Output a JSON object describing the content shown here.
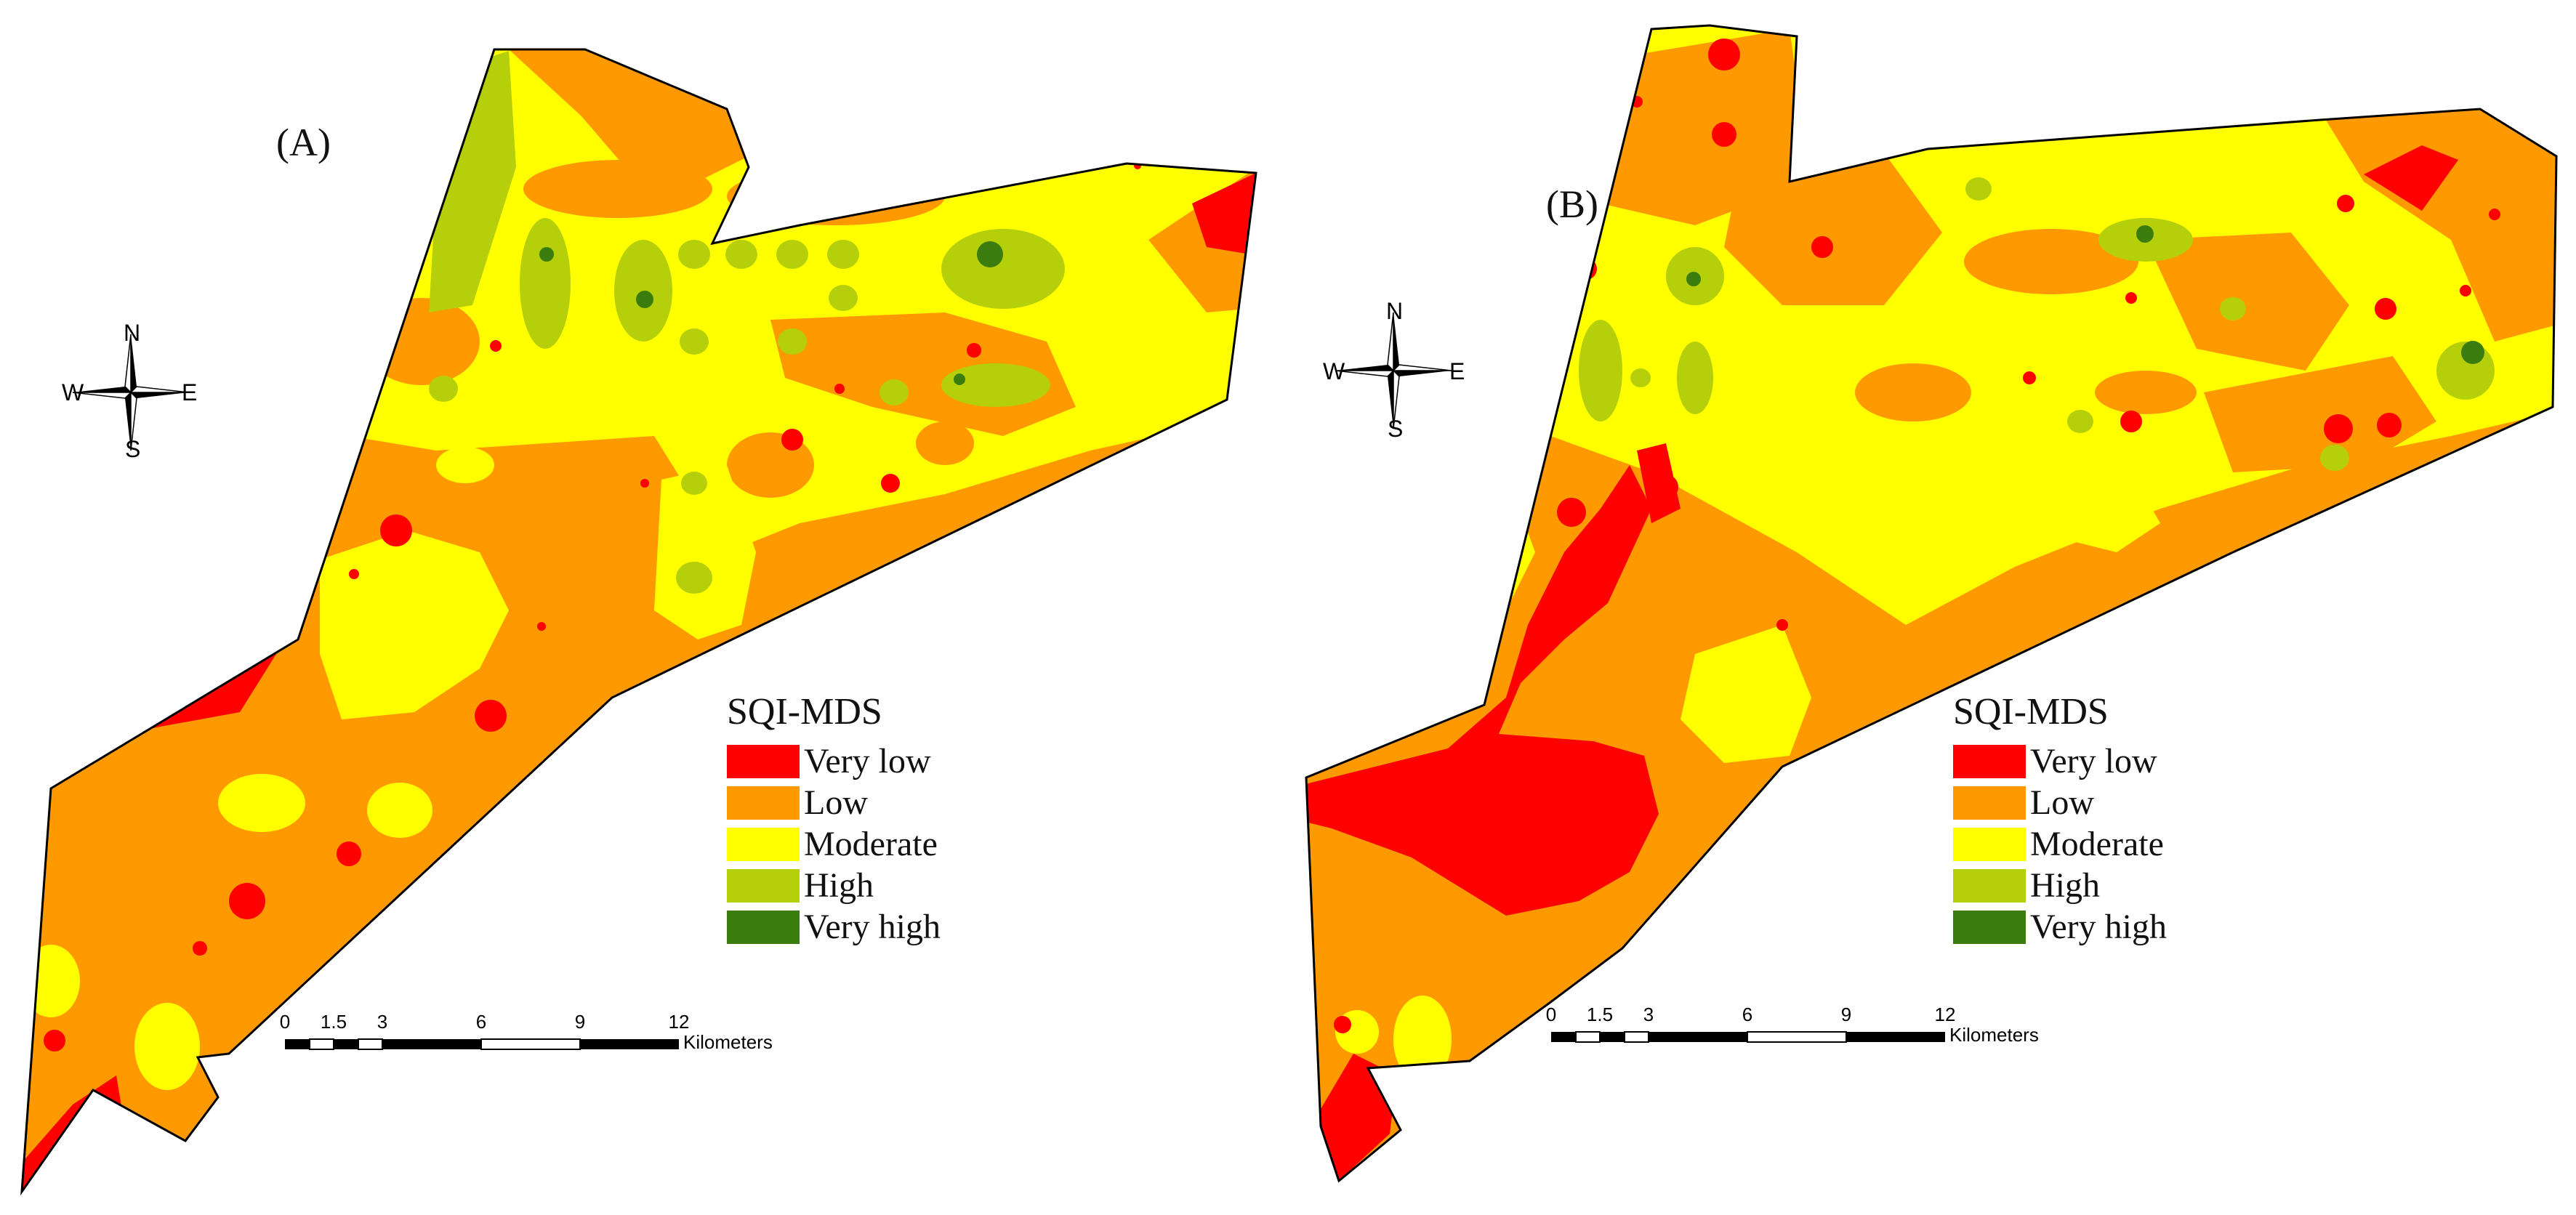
{
  "colors": {
    "very_low": "#ff0000",
    "low": "#ff9900",
    "moderate": "#ffff00",
    "high": "#b5cf0b",
    "very_high": "#3a7d0e",
    "outline": "#000000"
  },
  "compass": {
    "n": "N",
    "s": "S",
    "e": "E",
    "w": "W",
    "icon": "north-arrow-compass-rose-icon"
  },
  "legend": {
    "title": "SQI-MDS",
    "classes": [
      {
        "label": "Very low",
        "color": "#ff0000"
      },
      {
        "label": "Low",
        "color": "#ff9900"
      },
      {
        "label": "Moderate",
        "color": "#ffff00"
      },
      {
        "label": "High",
        "color": "#b5cf0b"
      },
      {
        "label": "Very high",
        "color": "#3a7d0e"
      }
    ]
  },
  "scalebar": {
    "ticks": [
      "0",
      "1.5",
      "3",
      "6",
      "9",
      "12"
    ],
    "unit": "Kilometers"
  },
  "panels": [
    {
      "label": "(A)"
    },
    {
      "label": "(B)"
    }
  ]
}
